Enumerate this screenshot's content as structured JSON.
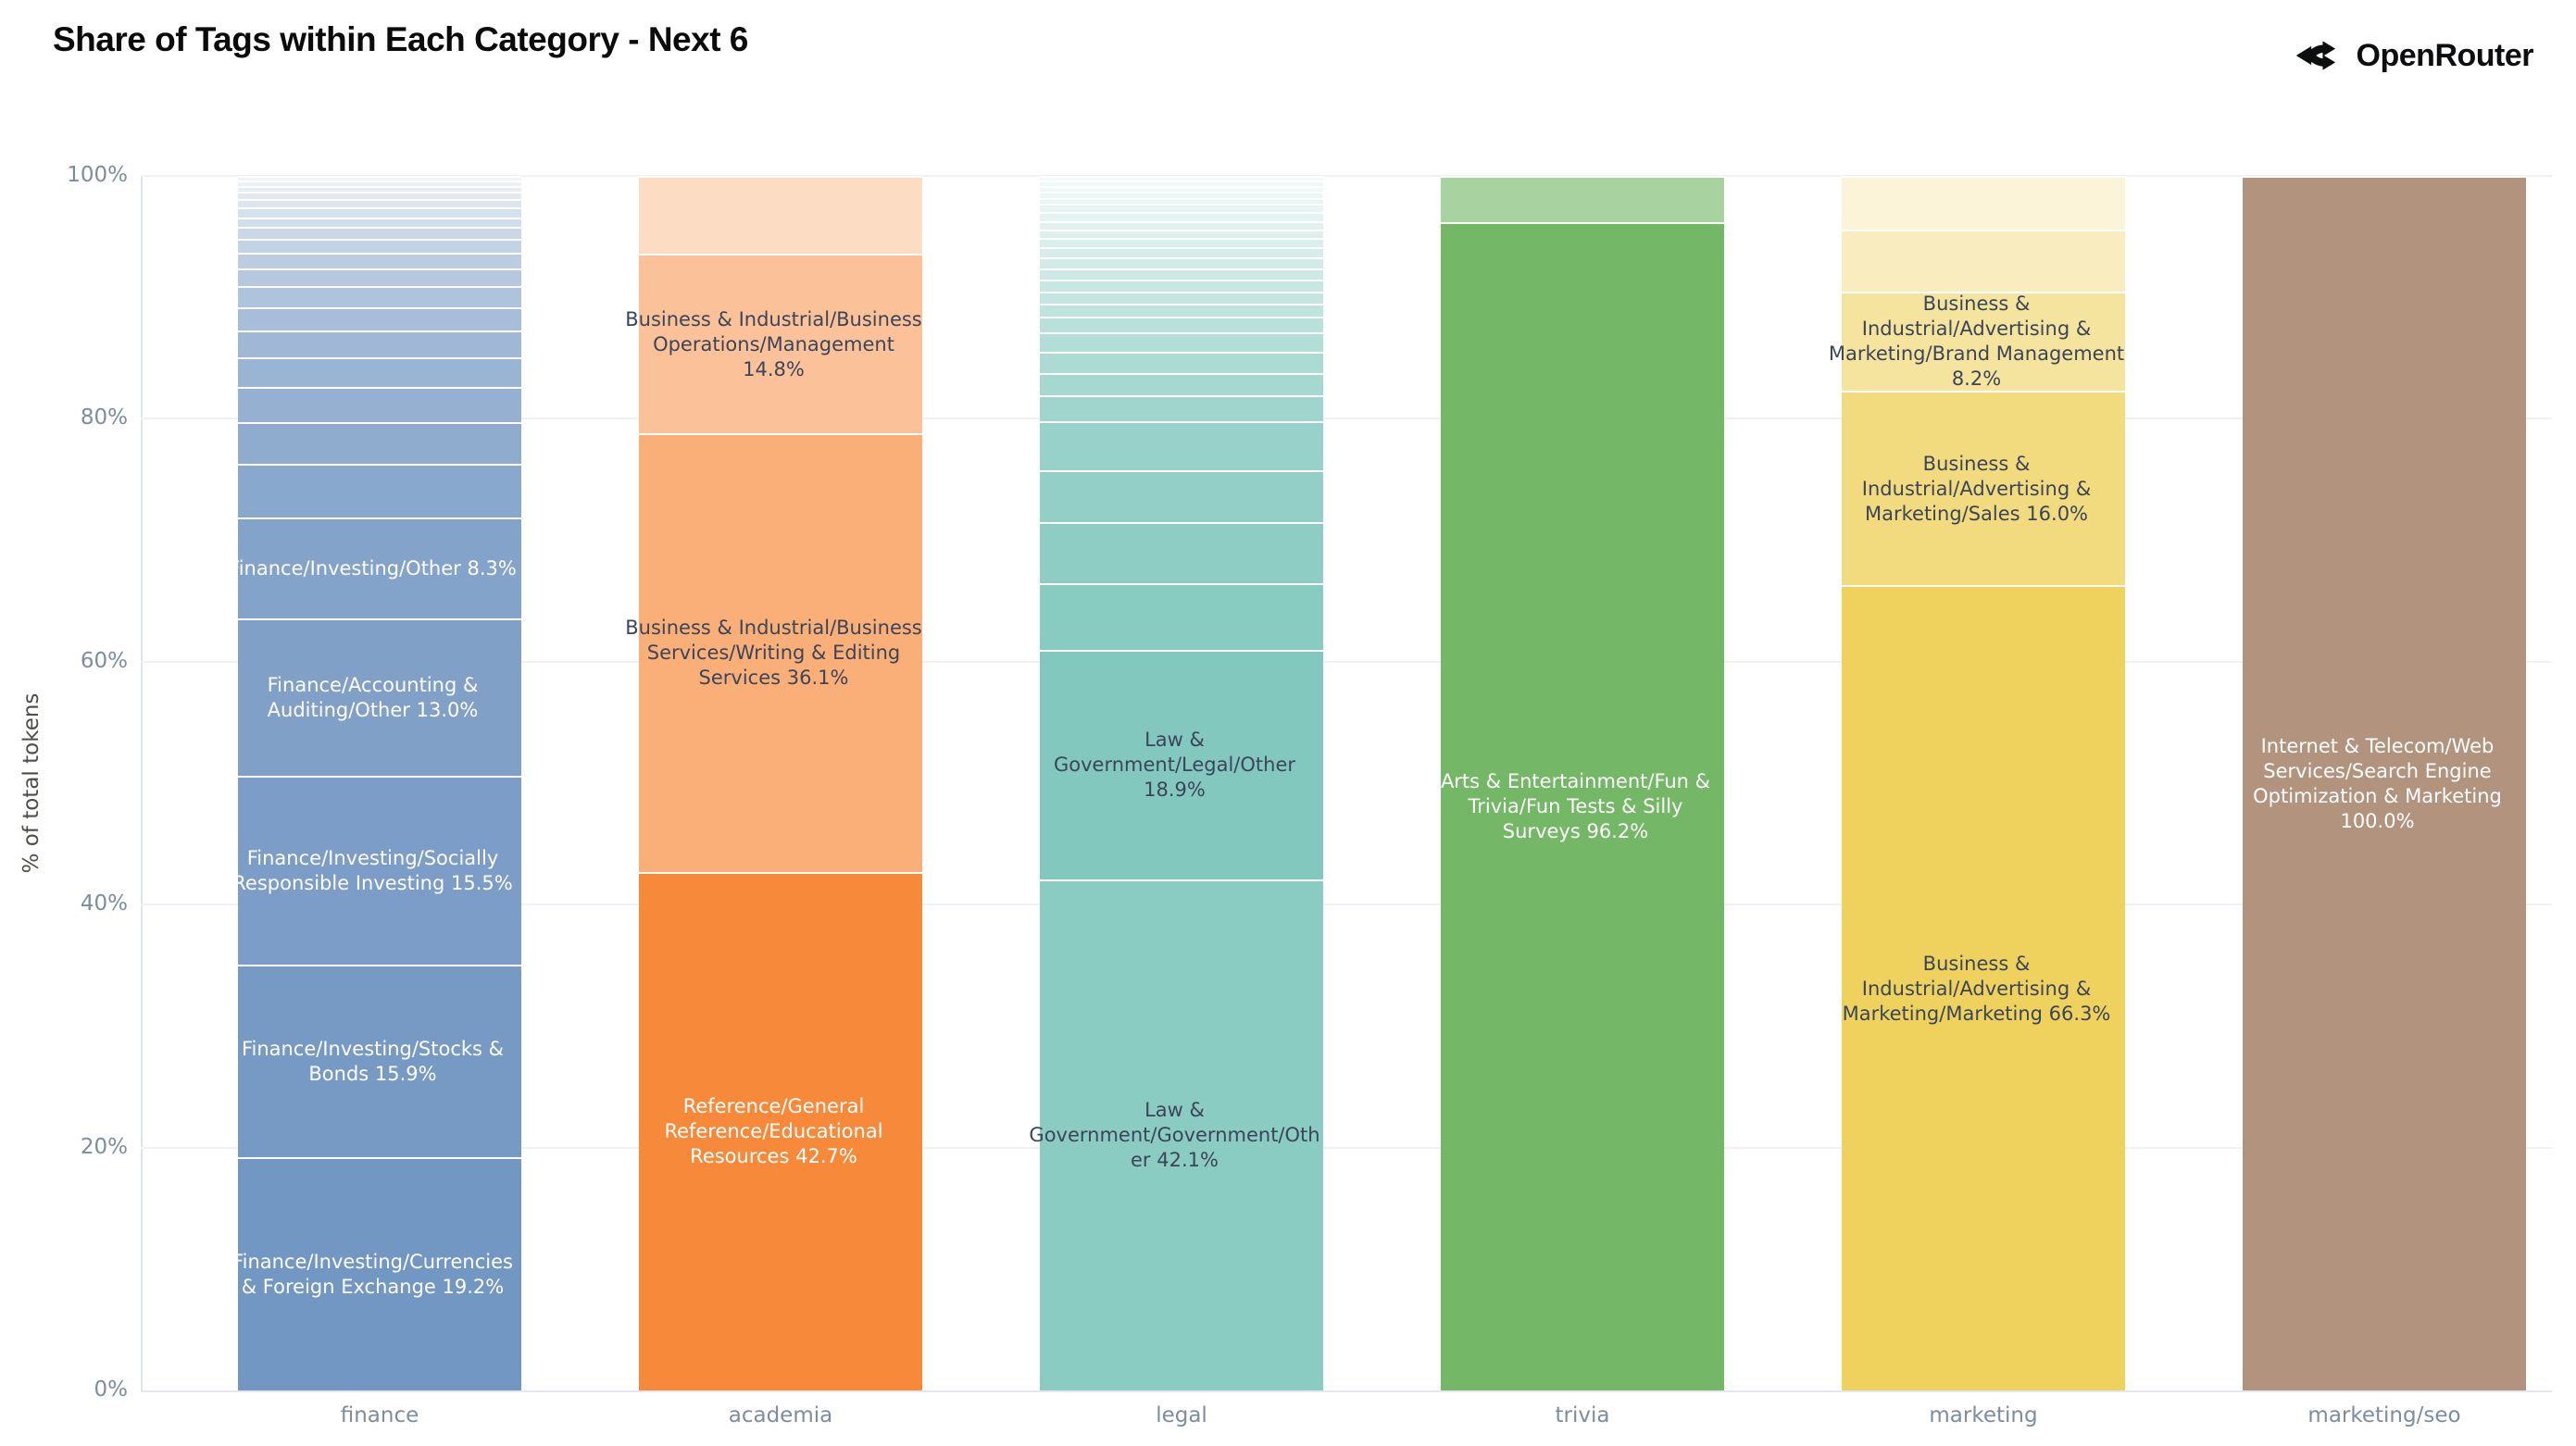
{
  "header": {
    "title": "Share of Tags within Each Category - Next 6",
    "brand": "OpenRouter",
    "brand_icon": "openrouter-fork-icon"
  },
  "chart_data": {
    "type": "bar",
    "stacked": true,
    "normalized_percent": true,
    "title": "Share of Tags within Each Category - Next 6",
    "xlabel": "",
    "ylabel": "% of total tokens",
    "ylim": [
      0,
      100
    ],
    "yticks": [
      0,
      20,
      40,
      60,
      80,
      100
    ],
    "ytick_labels": [
      "0%",
      "20%",
      "40%",
      "60%",
      "80%",
      "100%"
    ],
    "grid": true,
    "legend": "none",
    "categories": [
      "finance",
      "academia",
      "legal",
      "trivia",
      "marketing",
      "marketing/seo"
    ],
    "colors": {
      "finance_base": "#7397c3",
      "academia_base": "#f78a3a",
      "legal_base": "#7ec6bb",
      "trivia_base": "#74b767",
      "marketing_base": "#efd25e",
      "marketing_seo_base": "#b2937e",
      "label_dark": "#3b4559",
      "label_light": "#ffffff"
    },
    "bars": [
      {
        "category": "finance",
        "base_color": "#7397c3",
        "segments": [
          {
            "label": "Finance/Investing/Currencies & Foreign Exchange",
            "pct": 19.2,
            "alpha": 1.0,
            "text": "light"
          },
          {
            "label": "Finance/Investing/Stocks & Bonds",
            "pct": 15.9,
            "alpha": 0.97,
            "text": "light"
          },
          {
            "label": "Finance/Investing/Socially Responsible Investing",
            "pct": 15.5,
            "alpha": 0.94,
            "text": "light"
          },
          {
            "label": "Finance/Accounting & Auditing/Other",
            "pct": 13.0,
            "alpha": 0.91,
            "text": "light"
          },
          {
            "label": "Finance/Investing/Other",
            "pct": 8.3,
            "alpha": 0.88,
            "text": "light"
          },
          {
            "label": null,
            "pct": 4.4,
            "alpha": 0.84
          },
          {
            "label": null,
            "pct": 3.4,
            "alpha": 0.8
          },
          {
            "label": null,
            "pct": 2.9,
            "alpha": 0.76
          },
          {
            "label": null,
            "pct": 2.5,
            "alpha": 0.72
          },
          {
            "label": null,
            "pct": 2.2,
            "alpha": 0.68
          },
          {
            "label": null,
            "pct": 1.9,
            "alpha": 0.63
          },
          {
            "label": null,
            "pct": 1.7,
            "alpha": 0.58
          },
          {
            "label": null,
            "pct": 1.5,
            "alpha": 0.53
          },
          {
            "label": null,
            "pct": 1.3,
            "alpha": 0.48
          },
          {
            "label": null,
            "pct": 1.1,
            "alpha": 0.43
          },
          {
            "label": null,
            "pct": 1.0,
            "alpha": 0.38
          },
          {
            "label": null,
            "pct": 0.8,
            "alpha": 0.33
          },
          {
            "label": null,
            "pct": 0.8,
            "alpha": 0.29
          },
          {
            "label": null,
            "pct": 0.7,
            "alpha": 0.25
          },
          {
            "label": null,
            "pct": 0.6,
            "alpha": 0.21
          },
          {
            "label": null,
            "pct": 0.5,
            "alpha": 0.17
          },
          {
            "label": null,
            "pct": 0.4,
            "alpha": 0.13
          },
          {
            "label": null,
            "pct": 0.4,
            "alpha": 0.1
          }
        ]
      },
      {
        "category": "academia",
        "base_color": "#f78a3a",
        "segments": [
          {
            "label": "Reference/General Reference/Educational Resources",
            "pct": 42.7,
            "alpha": 1.0,
            "text": "light"
          },
          {
            "label": "Business & Industrial/Business Services/Writing & Editing Services",
            "pct": 36.1,
            "alpha": 0.68,
            "text": "dark"
          },
          {
            "label": "Business & Industrial/Business Operations/Management",
            "pct": 14.8,
            "alpha": 0.52,
            "text": "dark"
          },
          {
            "label": null,
            "pct": 6.4,
            "alpha": 0.3
          }
        ]
      },
      {
        "category": "legal",
        "base_color": "#7ec6bb",
        "segments": [
          {
            "label": "Law & Government/Government/Other",
            "pct": 42.1,
            "alpha": 0.9,
            "text": "dark"
          },
          {
            "label": "Law & Government/Legal/Other",
            "pct": 18.9,
            "alpha": 0.96,
            "text": "dark"
          },
          {
            "label": null,
            "pct": 5.5,
            "alpha": 0.92
          },
          {
            "label": null,
            "pct": 5.0,
            "alpha": 0.88
          },
          {
            "label": null,
            "pct": 4.3,
            "alpha": 0.84
          },
          {
            "label": null,
            "pct": 4.0,
            "alpha": 0.8
          },
          {
            "label": null,
            "pct": 2.1,
            "alpha": 0.74
          },
          {
            "label": null,
            "pct": 1.9,
            "alpha": 0.69
          },
          {
            "label": null,
            "pct": 1.7,
            "alpha": 0.64
          },
          {
            "label": null,
            "pct": 1.6,
            "alpha": 0.59
          },
          {
            "label": null,
            "pct": 1.3,
            "alpha": 0.54
          },
          {
            "label": null,
            "pct": 1.1,
            "alpha": 0.5
          },
          {
            "label": null,
            "pct": 1.0,
            "alpha": 0.46
          },
          {
            "label": null,
            "pct": 1.0,
            "alpha": 0.42
          },
          {
            "label": null,
            "pct": 0.9,
            "alpha": 0.38
          },
          {
            "label": null,
            "pct": 0.9,
            "alpha": 0.35
          },
          {
            "label": null,
            "pct": 0.8,
            "alpha": 0.32
          },
          {
            "label": null,
            "pct": 0.8,
            "alpha": 0.29
          },
          {
            "label": null,
            "pct": 0.7,
            "alpha": 0.26
          },
          {
            "label": null,
            "pct": 0.7,
            "alpha": 0.23
          },
          {
            "label": null,
            "pct": 0.7,
            "alpha": 0.21
          },
          {
            "label": null,
            "pct": 0.7,
            "alpha": 0.19
          },
          {
            "label": null,
            "pct": 0.5,
            "alpha": 0.17
          },
          {
            "label": null,
            "pct": 0.5,
            "alpha": 0.15
          },
          {
            "label": null,
            "pct": 0.5,
            "alpha": 0.13
          },
          {
            "label": null,
            "pct": 0.4,
            "alpha": 0.11
          },
          {
            "label": null,
            "pct": 0.4,
            "alpha": 0.09
          }
        ]
      },
      {
        "category": "trivia",
        "base_color": "#74b767",
        "segments": [
          {
            "label": "Arts & Entertainment/Fun & Trivia/Fun Tests & Silly Surveys",
            "pct": 96.2,
            "alpha": 1.0,
            "text": "light"
          },
          {
            "label": null,
            "pct": 3.8,
            "alpha": 0.62
          }
        ]
      },
      {
        "category": "marketing",
        "base_color": "#efd25e",
        "segments": [
          {
            "label": "Business & Industrial/Advertising & Marketing/Marketing",
            "pct": 66.3,
            "alpha": 1.0,
            "text": "dark"
          },
          {
            "label": "Business & Industrial/Advertising & Marketing/Sales",
            "pct": 16.0,
            "alpha": 0.8,
            "text": "dark"
          },
          {
            "label": "Business & Industrial/Advertising & Marketing/Brand Management",
            "pct": 8.2,
            "alpha": 0.6,
            "text": "dark"
          },
          {
            "label": null,
            "pct": 5.1,
            "alpha": 0.4
          },
          {
            "label": null,
            "pct": 4.4,
            "alpha": 0.24
          }
        ]
      },
      {
        "category": "marketing/seo",
        "base_color": "#b2937e",
        "segments": [
          {
            "label": "Internet & Telecom/Web Services/Search Engine Optimization & Marketing",
            "pct": 100.0,
            "alpha": 1.0,
            "text": "light"
          }
        ]
      }
    ]
  }
}
